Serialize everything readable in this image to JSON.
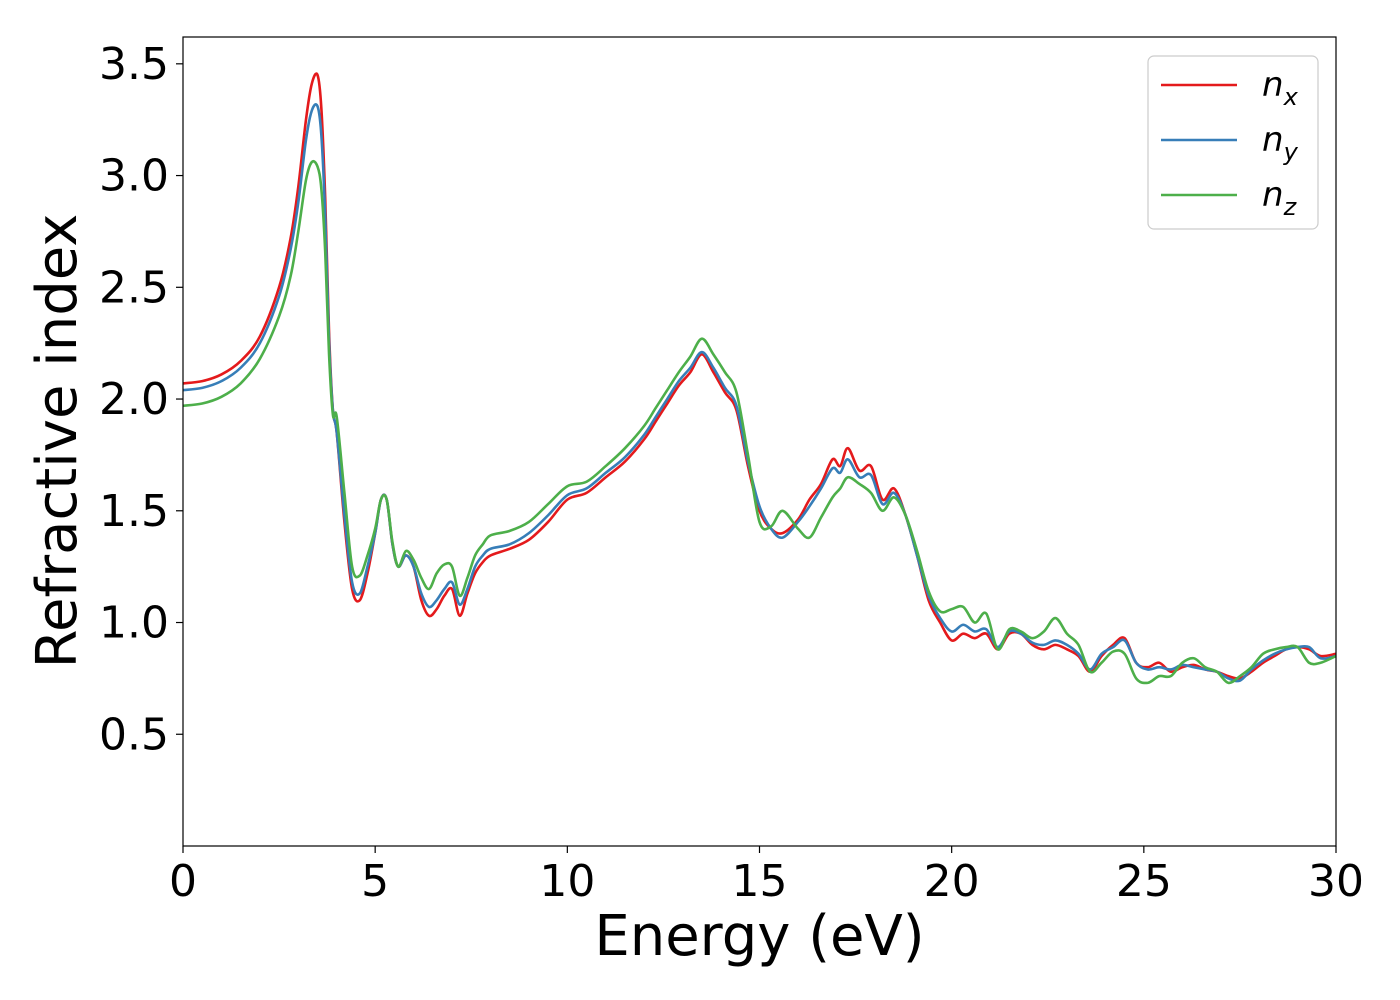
{
  "chart_data": {
    "type": "line",
    "xlabel": "Energy (eV)",
    "ylabel": "Refractive index",
    "xlim": [
      0,
      30
    ],
    "ylim": [
      0,
      3.62
    ],
    "xticks": [
      "0",
      "5",
      "10",
      "15",
      "20",
      "25",
      "30"
    ],
    "yticks": [
      "0.5",
      "1.0",
      "1.5",
      "2.0",
      "2.5",
      "3.0",
      "3.5"
    ],
    "grid": false,
    "legend": "top-right",
    "x": [
      0,
      0.5,
      1,
      1.5,
      2,
      2.5,
      2.8,
      3.0,
      3.2,
      3.35,
      3.5,
      3.6,
      3.7,
      3.8,
      3.9,
      4.0,
      4.2,
      4.4,
      4.6,
      4.8,
      5.0,
      5.15,
      5.3,
      5.45,
      5.6,
      5.8,
      6.0,
      6.2,
      6.4,
      6.6,
      6.8,
      7.0,
      7.2,
      7.4,
      7.6,
      7.8,
      8.0,
      8.5,
      9.0,
      9.5,
      10.0,
      10.5,
      11.0,
      11.5,
      12.0,
      12.3,
      12.6,
      12.9,
      13.2,
      13.5,
      13.8,
      14.1,
      14.4,
      14.7,
      15.0,
      15.3,
      15.6,
      16.0,
      16.3,
      16.6,
      16.9,
      17.1,
      17.3,
      17.6,
      17.9,
      18.2,
      18.5,
      18.8,
      19.1,
      19.4,
      19.7,
      20.0,
      20.3,
      20.6,
      20.9,
      21.2,
      21.5,
      21.8,
      22.1,
      22.4,
      22.7,
      23.0,
      23.3,
      23.6,
      23.9,
      24.2,
      24.5,
      24.8,
      25.1,
      25.4,
      25.7,
      26.0,
      26.3,
      26.6,
      26.9,
      27.2,
      27.5,
      27.8,
      28.1,
      28.4,
      28.7,
      29.0,
      29.3,
      29.6,
      30.0
    ],
    "series": [
      {
        "name": "n_x",
        "label_main": "n",
        "label_sub": "x",
        "color": "#e41a1c",
        "values": [
          2.07,
          2.08,
          2.11,
          2.17,
          2.28,
          2.5,
          2.72,
          2.95,
          3.25,
          3.41,
          3.45,
          3.3,
          2.9,
          2.3,
          1.95,
          1.85,
          1.45,
          1.15,
          1.1,
          1.22,
          1.4,
          1.55,
          1.55,
          1.35,
          1.25,
          1.3,
          1.25,
          1.1,
          1.03,
          1.06,
          1.12,
          1.15,
          1.03,
          1.13,
          1.22,
          1.27,
          1.3,
          1.33,
          1.37,
          1.45,
          1.55,
          1.58,
          1.65,
          1.72,
          1.82,
          1.9,
          1.98,
          2.06,
          2.12,
          2.2,
          2.12,
          2.03,
          1.95,
          1.7,
          1.5,
          1.42,
          1.4,
          1.46,
          1.55,
          1.62,
          1.73,
          1.7,
          1.78,
          1.68,
          1.7,
          1.55,
          1.6,
          1.48,
          1.3,
          1.1,
          1.0,
          0.92,
          0.95,
          0.93,
          0.95,
          0.88,
          0.95,
          0.95,
          0.9,
          0.88,
          0.9,
          0.88,
          0.85,
          0.78,
          0.85,
          0.9,
          0.93,
          0.82,
          0.8,
          0.82,
          0.78,
          0.8,
          0.81,
          0.79,
          0.78,
          0.76,
          0.75,
          0.78,
          0.82,
          0.85,
          0.88,
          0.89,
          0.88,
          0.85,
          0.86
        ]
      },
      {
        "name": "n_y",
        "label_main": "n",
        "label_sub": "y",
        "color": "#377eb8",
        "values": [
          2.04,
          2.05,
          2.08,
          2.14,
          2.25,
          2.46,
          2.67,
          2.88,
          3.16,
          3.29,
          3.31,
          3.18,
          2.82,
          2.26,
          1.95,
          1.85,
          1.48,
          1.18,
          1.13,
          1.25,
          1.4,
          1.55,
          1.55,
          1.35,
          1.25,
          1.3,
          1.25,
          1.13,
          1.07,
          1.1,
          1.15,
          1.18,
          1.08,
          1.15,
          1.25,
          1.3,
          1.33,
          1.35,
          1.4,
          1.48,
          1.57,
          1.6,
          1.67,
          1.74,
          1.84,
          1.92,
          2.0,
          2.08,
          2.14,
          2.21,
          2.14,
          2.05,
          1.97,
          1.72,
          1.52,
          1.42,
          1.38,
          1.45,
          1.52,
          1.6,
          1.69,
          1.67,
          1.73,
          1.65,
          1.66,
          1.53,
          1.58,
          1.48,
          1.3,
          1.12,
          1.02,
          0.96,
          0.99,
          0.96,
          0.97,
          0.89,
          0.96,
          0.95,
          0.91,
          0.9,
          0.92,
          0.9,
          0.86,
          0.79,
          0.86,
          0.89,
          0.92,
          0.82,
          0.79,
          0.8,
          0.79,
          0.81,
          0.8,
          0.79,
          0.78,
          0.75,
          0.74,
          0.79,
          0.83,
          0.86,
          0.88,
          0.89,
          0.89,
          0.84,
          0.85
        ]
      },
      {
        "name": "n_z",
        "label_main": "n",
        "label_sub": "z",
        "color": "#4daf4a",
        "values": [
          1.97,
          1.98,
          2.01,
          2.07,
          2.18,
          2.37,
          2.55,
          2.75,
          2.98,
          3.06,
          3.04,
          2.94,
          2.66,
          2.2,
          1.93,
          1.92,
          1.58,
          1.25,
          1.21,
          1.3,
          1.42,
          1.55,
          1.55,
          1.36,
          1.25,
          1.32,
          1.28,
          1.2,
          1.15,
          1.22,
          1.26,
          1.25,
          1.12,
          1.2,
          1.3,
          1.35,
          1.39,
          1.41,
          1.45,
          1.53,
          1.61,
          1.63,
          1.7,
          1.78,
          1.88,
          1.96,
          2.04,
          2.12,
          2.19,
          2.27,
          2.2,
          2.12,
          2.03,
          1.75,
          1.45,
          1.43,
          1.5,
          1.42,
          1.38,
          1.47,
          1.56,
          1.6,
          1.65,
          1.62,
          1.58,
          1.5,
          1.56,
          1.48,
          1.32,
          1.14,
          1.05,
          1.06,
          1.07,
          1.0,
          1.04,
          0.88,
          0.97,
          0.96,
          0.93,
          0.96,
          1.02,
          0.95,
          0.9,
          0.78,
          0.82,
          0.87,
          0.86,
          0.75,
          0.73,
          0.76,
          0.76,
          0.82,
          0.84,
          0.8,
          0.78,
          0.73,
          0.76,
          0.8,
          0.86,
          0.88,
          0.89,
          0.89,
          0.82,
          0.82,
          0.85
        ]
      }
    ]
  }
}
